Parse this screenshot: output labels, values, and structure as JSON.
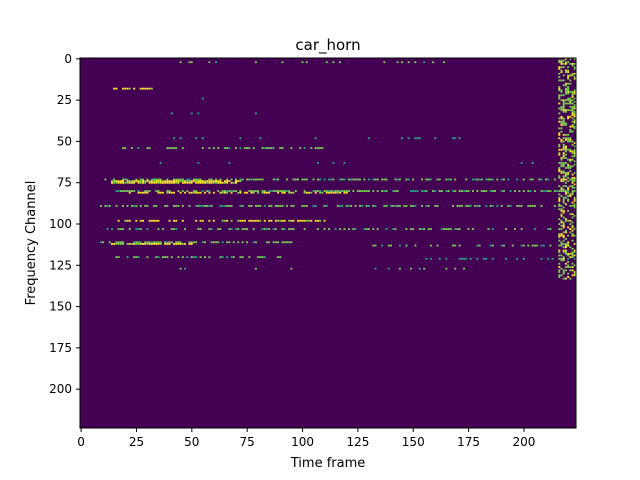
{
  "chart_data": {
    "type": "heatmap",
    "title": "car_horn",
    "xlabel": "Time frame",
    "ylabel": "Frequency Channel",
    "xlim": [
      0,
      224
    ],
    "ylim": [
      224,
      0
    ],
    "xticks": [
      0,
      25,
      50,
      75,
      100,
      125,
      150,
      175,
      200
    ],
    "yticks": [
      0,
      25,
      50,
      75,
      100,
      125,
      150,
      175,
      200
    ],
    "background_color": "#440154",
    "value_colors": {
      "0.6": "#21a685",
      "0.8": "#7ad151",
      "1": "#fde725"
    },
    "grid": false,
    "legend": "none",
    "segments": [
      {
        "channel": 73,
        "x_start": 10,
        "x_end": 223,
        "density": 0.6,
        "value": 0.8
      },
      {
        "channel": 74,
        "x_start": 14,
        "x_end": 72,
        "density": 0.95,
        "value": 1
      },
      {
        "channel": 75,
        "x_start": 14,
        "x_end": 70,
        "density": 0.9,
        "value": 1
      },
      {
        "channel": 80,
        "x_start": 15,
        "x_end": 223,
        "density": 0.65,
        "value": 0.8
      },
      {
        "channel": 81,
        "x_start": 18,
        "x_end": 120,
        "density": 0.6,
        "value": 1
      },
      {
        "channel": 89,
        "x_start": 8,
        "x_end": 223,
        "density": 0.55,
        "value": 0.8
      },
      {
        "channel": 98,
        "x_start": 14,
        "x_end": 110,
        "density": 0.55,
        "value": 1
      },
      {
        "channel": 103,
        "x_start": 12,
        "x_end": 223,
        "density": 0.45,
        "value": 0.8
      },
      {
        "channel": 111,
        "x_start": 9,
        "x_end": 95,
        "density": 0.6,
        "value": 0.8
      },
      {
        "channel": 112,
        "x_start": 14,
        "x_end": 50,
        "density": 0.85,
        "value": 1
      },
      {
        "channel": 113,
        "x_start": 130,
        "x_end": 223,
        "density": 0.35,
        "value": 0.8
      },
      {
        "channel": 120,
        "x_start": 16,
        "x_end": 90,
        "density": 0.45,
        "value": 0.8
      },
      {
        "channel": 121,
        "x_start": 145,
        "x_end": 223,
        "density": 0.3,
        "value": 0.6
      },
      {
        "channel": 54,
        "x_start": 16,
        "x_end": 110,
        "density": 0.45,
        "value": 0.8
      },
      {
        "channel": 18,
        "x_start": 15,
        "x_end": 33,
        "density": 0.8,
        "value": 1
      },
      {
        "channel": 2,
        "x_start": 35,
        "x_end": 165,
        "density": 0.15,
        "value": 0.8
      },
      {
        "channel": 127,
        "x_start": 30,
        "x_end": 200,
        "density": 0.08,
        "value": 0.8
      },
      {
        "channel": 48,
        "x_start": 20,
        "x_end": 205,
        "density": 0.08,
        "value": 0.6
      },
      {
        "channel": 24,
        "x_start": 30,
        "x_end": 100,
        "density": 0.06,
        "value": 0.6
      },
      {
        "channel": 33,
        "x_start": 30,
        "x_end": 100,
        "density": 0.05,
        "value": 0.6
      },
      {
        "channel": 63,
        "x_start": 20,
        "x_end": 223,
        "density": 0.05,
        "value": 0.6
      }
    ],
    "right_edge_band": {
      "x_start": 216,
      "x_end": 223,
      "channel_start": 0,
      "channel_end": 133,
      "density": 0.4,
      "value": 0.8
    }
  }
}
